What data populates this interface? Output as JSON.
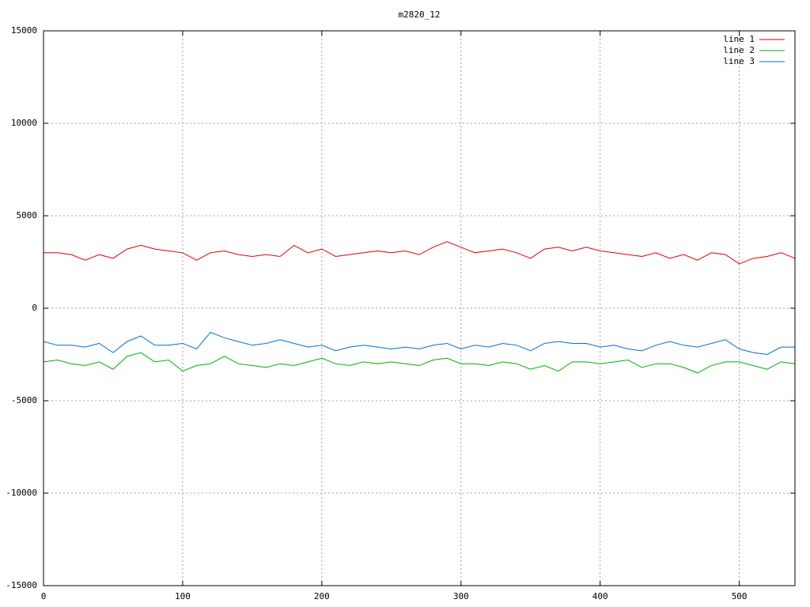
{
  "chart_data": {
    "type": "line",
    "title": "m2820_12",
    "x": [
      0,
      10,
      20,
      30,
      40,
      50,
      60,
      70,
      80,
      90,
      100,
      110,
      120,
      130,
      140,
      150,
      160,
      170,
      180,
      190,
      200,
      210,
      220,
      230,
      240,
      250,
      260,
      270,
      280,
      290,
      300,
      310,
      320,
      330,
      340,
      350,
      360,
      370,
      380,
      390,
      400,
      410,
      420,
      430,
      440,
      450,
      460,
      470,
      480,
      490,
      500,
      510,
      520,
      530,
      540
    ],
    "series": [
      {
        "name": "line 1",
        "color": "#e00000",
        "values": [
          3000,
          3000,
          2900,
          2600,
          2900,
          2700,
          3200,
          3400,
          3200,
          3100,
          3000,
          2600,
          3000,
          3100,
          2900,
          2800,
          2900,
          2800,
          3400,
          3000,
          3200,
          2800,
          2900,
          3000,
          3100,
          3000,
          3100,
          2900,
          3300,
          3600,
          3300,
          3000,
          3100,
          3200,
          3000,
          2700,
          3200,
          3300,
          3100,
          3300,
          3100,
          3000,
          2900,
          2800,
          3000,
          2700,
          2900,
          2600,
          3000,
          2900,
          2400,
          2700,
          2800,
          3000,
          2700
        ]
      },
      {
        "name": "line 2",
        "color": "#00b000",
        "values": [
          -2900,
          -2800,
          -3000,
          -3100,
          -2900,
          -3300,
          -2600,
          -2400,
          -2900,
          -2800,
          -3400,
          -3100,
          -3000,
          -2600,
          -3000,
          -3100,
          -3200,
          -3000,
          -3100,
          -2900,
          -2700,
          -3000,
          -3100,
          -2900,
          -3000,
          -2900,
          -3000,
          -3100,
          -2800,
          -2700,
          -3000,
          -3000,
          -3100,
          -2900,
          -3000,
          -3300,
          -3100,
          -3400,
          -2900,
          -2900,
          -3000,
          -2900,
          -2800,
          -3200,
          -3000,
          -3000,
          -3200,
          -3500,
          -3100,
          -2900,
          -2900,
          -3100,
          -3300,
          -2900,
          -3000
        ]
      },
      {
        "name": "line 3",
        "color": "#0070d0",
        "values": [
          -1800,
          -2000,
          -2000,
          -2100,
          -1900,
          -2400,
          -1800,
          -1500,
          -2000,
          -2000,
          -1900,
          -2200,
          -1300,
          -1600,
          -1800,
          -2000,
          -1900,
          -1700,
          -1900,
          -2100,
          -2000,
          -2300,
          -2100,
          -2000,
          -2100,
          -2200,
          -2100,
          -2200,
          -2000,
          -1900,
          -2200,
          -2000,
          -2100,
          -1900,
          -2000,
          -2300,
          -1900,
          -1800,
          -1900,
          -1900,
          -2100,
          -2000,
          -2200,
          -2300,
          -2000,
          -1800,
          -2000,
          -2100,
          -1900,
          -1700,
          -2200,
          -2400,
          -2500,
          -2100,
          -2100
        ]
      }
    ],
    "xlim": [
      0,
      540
    ],
    "xticks": [
      0,
      100,
      200,
      300,
      400,
      500
    ],
    "ylim": [
      -15000,
      15000
    ],
    "yticks": [
      -15000,
      -10000,
      -5000,
      0,
      5000,
      10000,
      15000
    ],
    "grid": true,
    "legend": "top-right"
  }
}
